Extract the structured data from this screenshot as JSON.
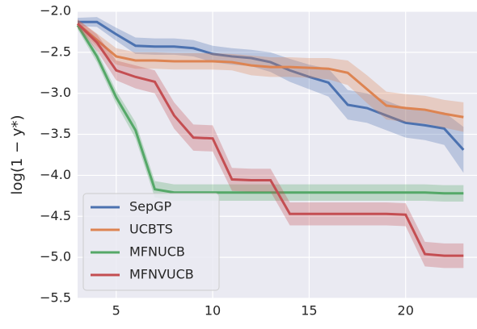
{
  "chart_data": {
    "type": "line",
    "ylabel": "log(1 − y*)",
    "x": [
      3,
      4,
      5,
      6,
      7,
      8,
      9,
      10,
      11,
      12,
      13,
      14,
      15,
      16,
      17,
      18,
      19,
      20,
      21,
      22,
      23
    ],
    "series": [
      {
        "name": "SepGP",
        "color": "#4c72b0",
        "values": [
          -2.13,
          -2.13,
          -2.28,
          -2.42,
          -2.43,
          -2.43,
          -2.45,
          -2.52,
          -2.55,
          -2.57,
          -2.62,
          -2.72,
          -2.8,
          -2.87,
          -3.14,
          -3.18,
          -3.27,
          -3.36,
          -3.39,
          -3.43,
          -3.69
        ],
        "error": [
          0.05,
          0.06,
          0.08,
          0.1,
          0.1,
          0.1,
          0.1,
          0.1,
          0.1,
          0.1,
          0.12,
          0.14,
          0.15,
          0.17,
          0.18,
          0.18,
          0.18,
          0.18,
          0.18,
          0.2,
          0.28
        ]
      },
      {
        "name": "UCBTS",
        "color": "#dd8452",
        "values": [
          -2.15,
          -2.35,
          -2.55,
          -2.6,
          -2.6,
          -2.61,
          -2.61,
          -2.61,
          -2.62,
          -2.66,
          -2.68,
          -2.68,
          -2.69,
          -2.7,
          -2.75,
          -2.95,
          -3.15,
          -3.18,
          -3.2,
          -3.25,
          -3.29
        ],
        "error": [
          0.05,
          0.08,
          0.1,
          0.1,
          0.1,
          0.1,
          0.1,
          0.1,
          0.1,
          0.12,
          0.12,
          0.12,
          0.12,
          0.13,
          0.15,
          0.17,
          0.17,
          0.17,
          0.17,
          0.17,
          0.18
        ]
      },
      {
        "name": "MFNUCB",
        "color": "#55a868",
        "values": [
          -2.17,
          -2.55,
          -3.05,
          -3.45,
          -4.17,
          -4.21,
          -4.21,
          -4.21,
          -4.21,
          -4.21,
          -4.21,
          -4.21,
          -4.21,
          -4.21,
          -4.21,
          -4.21,
          -4.21,
          -4.21,
          -4.21,
          -4.22,
          -4.22
        ],
        "error": [
          0.05,
          0.07,
          0.08,
          0.1,
          0.1,
          0.1,
          0.1,
          0.1,
          0.1,
          0.1,
          0.1,
          0.1,
          0.1,
          0.1,
          0.1,
          0.1,
          0.1,
          0.1,
          0.1,
          0.1,
          0.1
        ]
      },
      {
        "name": "MFNVUCB",
        "color": "#c44e52",
        "values": [
          -2.15,
          -2.38,
          -2.72,
          -2.8,
          -2.86,
          -3.27,
          -3.54,
          -3.55,
          -4.05,
          -4.06,
          -4.06,
          -4.47,
          -4.47,
          -4.47,
          -4.47,
          -4.47,
          -4.47,
          -4.48,
          -4.96,
          -4.98,
          -4.98
        ],
        "error": [
          0.05,
          0.1,
          0.12,
          0.14,
          0.14,
          0.16,
          0.16,
          0.16,
          0.14,
          0.14,
          0.14,
          0.14,
          0.14,
          0.14,
          0.14,
          0.14,
          0.14,
          0.14,
          0.15,
          0.15,
          0.15
        ]
      }
    ],
    "xlim": [
      3,
      23.7
    ],
    "xticks": [
      5,
      10,
      15,
      20
    ],
    "ylim": [
      -5.5,
      -2.0
    ],
    "yticks": [
      {
        "value": -5.5,
        "label": "−5.5"
      },
      {
        "value": -5.0,
        "label": "−5.0"
      },
      {
        "value": -4.5,
        "label": "−4.5"
      },
      {
        "value": -4.0,
        "label": "−4.0"
      },
      {
        "value": -3.5,
        "label": "−3.5"
      },
      {
        "value": -3.0,
        "label": "−3.0"
      },
      {
        "value": -2.5,
        "label": "−2.5"
      },
      {
        "value": -2.0,
        "label": "−2.0"
      }
    ],
    "grid": true,
    "legend": "lower left"
  }
}
